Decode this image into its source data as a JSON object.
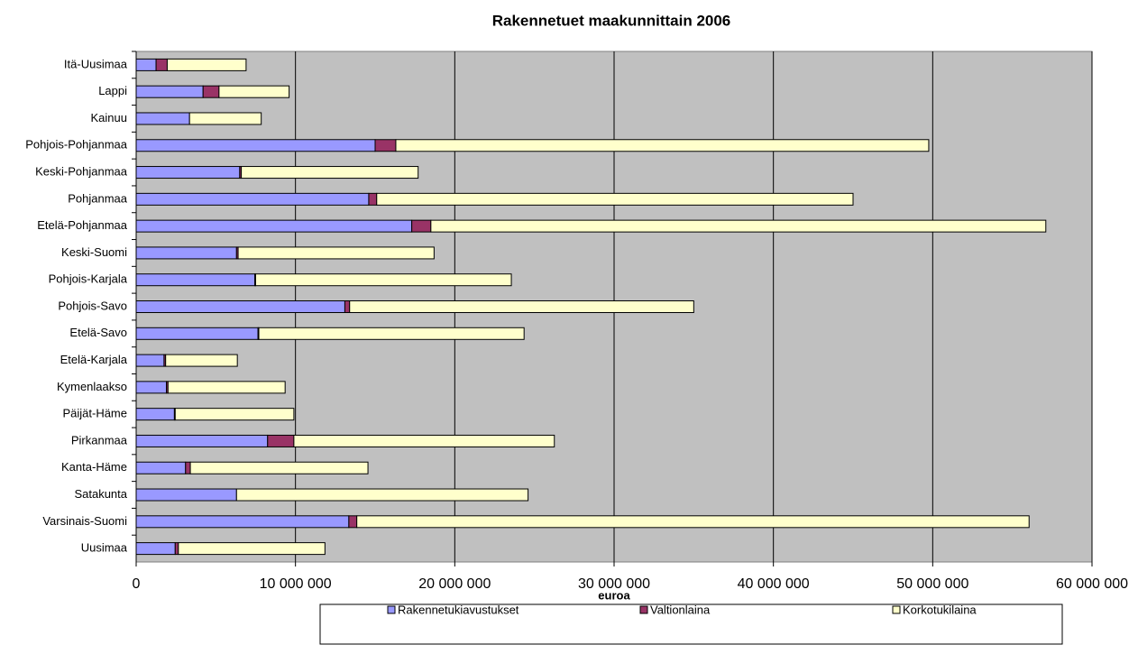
{
  "chart_data": {
    "type": "stacked_barh",
    "title": "Rakennetuet maakunnittain 2006",
    "xlabel": "euroa",
    "categories": [
      "Itä-Uusimaa",
      "Lappi",
      "Kainuu",
      "Pohjois-Pohjanmaa",
      "Keski-Pohjanmaa",
      "Pohjanmaa",
      "Etelä-Pohjanmaa",
      "Keski-Suomi",
      "Pohjois-Karjala",
      "Pohjois-Savo",
      "Etelä-Savo",
      "Etelä-Karjala",
      "Kymenlaakso",
      "Päijät-Häme",
      "Pirkanmaa",
      "Kanta-Häme",
      "Satakunta",
      "Varsinais-Suomi",
      "Uusimaa"
    ],
    "series": [
      {
        "name": "Rakennetukiavustukset",
        "color": "#9999ff",
        "values": [
          1250000,
          4200000,
          3350000,
          15000000,
          6500000,
          14600000,
          17300000,
          6300000,
          7450000,
          13100000,
          7650000,
          1750000,
          1900000,
          2400000,
          8250000,
          3100000,
          6300000,
          13350000,
          2450000
        ]
      },
      {
        "name": "Valtionlaina",
        "color": "#993366",
        "values": [
          700000,
          1000000,
          0,
          1300000,
          100000,
          500000,
          1200000,
          100000,
          50000,
          300000,
          50000,
          100000,
          100000,
          50000,
          1650000,
          300000,
          0,
          500000,
          200000
        ]
      },
      {
        "name": "Korkotukilaina",
        "color": "#ffffcc",
        "values": [
          4950000,
          4400000,
          4500000,
          33450000,
          11100000,
          29900000,
          38600000,
          12300000,
          16050000,
          21600000,
          16650000,
          4500000,
          7350000,
          7450000,
          16350000,
          11150000,
          18300000,
          42200000,
          9200000
        ]
      }
    ],
    "xlim": [
      0,
      60000000
    ],
    "xticks": [
      0,
      {
        "value": 10000000,
        "label": "10 000 000"
      },
      {
        "value": 20000000,
        "label": "20 000 000"
      },
      {
        "value": 30000000,
        "label": "30 000 000"
      },
      {
        "value": 40000000,
        "label": "40 000 000"
      },
      {
        "value": 50000000,
        "label": "50 000 000"
      },
      {
        "value": 60000000,
        "label": "60 000 000"
      }
    ],
    "grid": true,
    "legend": "bottom"
  }
}
